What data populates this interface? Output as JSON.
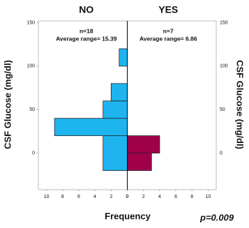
{
  "chart_data": {
    "type": "back-to-back-histogram",
    "series": [
      {
        "name": "NO",
        "color": "#1eb4f0",
        "side": "left",
        "bins": [
          -20,
          20,
          40,
          60,
          80,
          100,
          120
        ],
        "values": [
          3,
          9,
          3,
          2,
          0,
          1
        ],
        "n_label": "n=18",
        "average_label": "Average range= 15.39"
      },
      {
        "name": "YES",
        "color": "#a0004a",
        "side": "right",
        "bins": [
          -20,
          0,
          20
        ],
        "values": [
          3,
          4
        ],
        "n_label": "n=7",
        "average_label": "Average range= 6.86"
      }
    ],
    "y_label": "CSF Glucose  (mg/dl)",
    "x_label": "Frequency",
    "p_value": "p=0.009",
    "xlim": [
      0,
      11
    ],
    "xticks": [
      0,
      2,
      4,
      6,
      8,
      10
    ],
    "ylim": [
      -42,
      152
    ],
    "yticks": [
      0,
      50,
      100,
      150
    ]
  }
}
